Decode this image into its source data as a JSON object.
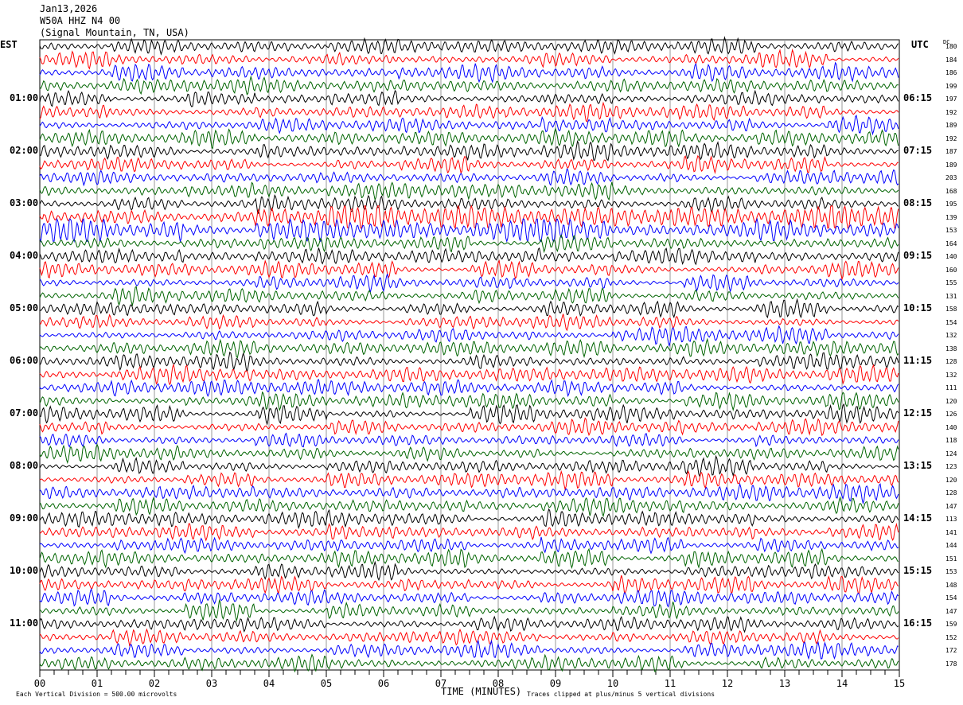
{
  "header": {
    "date": "Jan13,2026",
    "station": "W50A HHZ N4 00",
    "location": "(Signal Mountain, TN, USA)"
  },
  "left_axis_label": "EST",
  "right_axis_label": "UTC",
  "dc_label": "DC",
  "left_times": [
    "01:00",
    "02:00",
    "03:00",
    "04:00",
    "05:00",
    "06:00",
    "07:00",
    "08:00",
    "09:00",
    "10:00",
    "11:00"
  ],
  "right_times": [
    "06:15",
    "07:15",
    "08:15",
    "09:15",
    "10:15",
    "11:15",
    "12:15",
    "13:15",
    "14:15",
    "15:15",
    "16:15"
  ],
  "footer": {
    "scale": "Each Vertical Division =  500.00 microvolts",
    "xlabel": "TIME (MINUTES)",
    "clip_note": "Traces clipped at plus/minus 5 vertical divisions"
  },
  "chart_data": {
    "type": "line",
    "title": "W50A HHZ N4 00 helicorder",
    "xlabel": "TIME (MINUTES)",
    "xlim": [
      0,
      15
    ],
    "x_ticks": [
      "00",
      "01",
      "02",
      "03",
      "04",
      "05",
      "06",
      "07",
      "08",
      "09",
      "10",
      "11",
      "12",
      "13",
      "14",
      "15"
    ],
    "trace_count": 48,
    "trace_colors": [
      "#000000",
      "#ff0000",
      "#0000ff",
      "#006400"
    ],
    "dc_offsets": [
      180,
      184,
      186,
      199,
      197,
      192,
      189,
      192,
      187,
      189,
      203,
      168,
      195,
      139,
      153,
      164,
      140,
      160,
      155,
      131,
      158,
      154,
      132,
      138,
      128,
      132,
      111,
      120,
      126,
      140,
      118,
      124,
      123,
      120,
      128,
      147,
      113,
      141,
      144,
      151,
      153,
      148,
      154,
      147,
      159,
      152,
      172,
      178
    ]
  }
}
